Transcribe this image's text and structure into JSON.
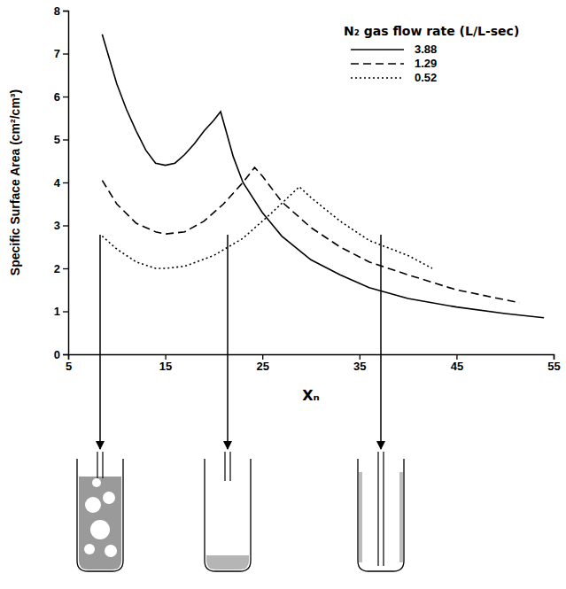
{
  "chart_data": {
    "type": "line",
    "x_label": "Xₙ",
    "y_label": "Specific Surface Area (cm²/cm³)",
    "legend_title": "N₂ gas flow rate (L/L-sec)",
    "legend": "top-right",
    "grid": false,
    "xlim": [
      5,
      55
    ],
    "xticks": [
      5,
      15,
      25,
      35,
      45,
      55
    ],
    "ylim": [
      0,
      8
    ],
    "yticks": [
      0,
      1,
      2,
      3,
      4,
      5,
      6,
      7,
      8
    ],
    "series": [
      {
        "name": "3.88",
        "color": "#000000",
        "line_style": "solid",
        "x": [
          8.5,
          10,
          11,
          12,
          13,
          14,
          15,
          16,
          17,
          18,
          19,
          20,
          20.7,
          22,
          23,
          25,
          27,
          30,
          33,
          36,
          40,
          45,
          50,
          54
        ],
        "values": [
          7.45,
          6.3,
          5.7,
          5.2,
          4.75,
          4.45,
          4.4,
          4.45,
          4.65,
          4.9,
          5.2,
          5.45,
          5.65,
          4.6,
          4.0,
          3.3,
          2.75,
          2.2,
          1.85,
          1.55,
          1.3,
          1.1,
          0.95,
          0.85
        ]
      },
      {
        "name": "1.29",
        "color": "#000000",
        "line_style": "dashed",
        "x": [
          8.5,
          10,
          12,
          14,
          15,
          17,
          19,
          21,
          23,
          24.2,
          25,
          27,
          30,
          33,
          36,
          40,
          45,
          51.5
        ],
        "values": [
          4.05,
          3.5,
          3.05,
          2.85,
          2.8,
          2.85,
          3.1,
          3.5,
          4.0,
          4.35,
          4.15,
          3.55,
          2.95,
          2.5,
          2.15,
          1.85,
          1.5,
          1.2
        ]
      },
      {
        "name": "0.52",
        "color": "#000000",
        "line_style": "dotted",
        "x": [
          8.5,
          10,
          12,
          14,
          15,
          17,
          20,
          23,
          26,
          28.8,
          30,
          33,
          36,
          40,
          42.5
        ],
        "values": [
          2.75,
          2.45,
          2.15,
          2.0,
          2.0,
          2.05,
          2.3,
          2.7,
          3.3,
          3.9,
          3.65,
          3.1,
          2.65,
          2.3,
          2.0
        ]
      }
    ]
  }
}
